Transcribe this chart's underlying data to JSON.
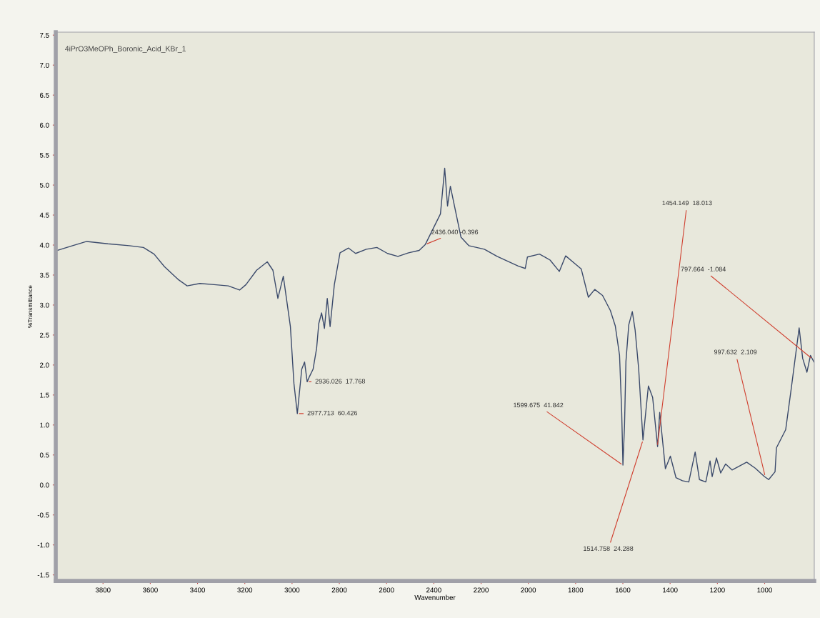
{
  "chart_data": {
    "type": "line",
    "xlabel": "Wavenumber",
    "ylabel": "%Transmittance",
    "xlim": [
      4000,
      790
    ],
    "ylim": [
      -1.6,
      7.55
    ],
    "xticks": [
      3800,
      3600,
      3400,
      3200,
      3000,
      2800,
      2600,
      2400,
      2200,
      2000,
      1800,
      1600,
      1400,
      1200,
      1000
    ],
    "yticks": [
      7.5,
      {
        "value": 7,
        "label": "7.0"
      },
      6.5,
      {
        "value": 6,
        "label": "6.0"
      },
      5.5,
      {
        "value": 5,
        "label": "5.0"
      },
      4.5,
      {
        "value": 4,
        "label": "4.0"
      },
      3.5,
      {
        "value": 3,
        "label": "3.0"
      },
      2.5,
      {
        "value": 2,
        "label": "2.0"
      },
      1.5,
      {
        "value": 1,
        "label": "1.0"
      },
      0.5,
      {
        "value": 0,
        "label": "0.0"
      },
      -0.5,
      {
        "value": -1,
        "label": "-1.0"
      },
      -1.5
    ],
    "grid": false,
    "marker": "none",
    "line_style": "solid",
    "series": [
      {
        "color": "#3b4a6b",
        "x": [
          3995,
          3929,
          3869,
          3779,
          3689,
          3629,
          3584,
          3540,
          3480,
          3444,
          3390,
          3330,
          3270,
          3222,
          3195,
          3150,
          3105,
          3081,
          3060,
          3037,
          3007,
          2992,
          2977.7,
          2959,
          2947,
          2936,
          2926,
          2911,
          2896,
          2887,
          2875,
          2863,
          2851,
          2839,
          2821,
          2797,
          2761,
          2731,
          2686,
          2641,
          2596,
          2552,
          2507,
          2462,
          2436,
          2372,
          2354,
          2342,
          2330,
          2312,
          2285,
          2252,
          2186,
          2132,
          2043,
          2013,
          2004,
          1953,
          1908,
          1869,
          1842,
          1803,
          1776,
          1746,
          1719,
          1686,
          1653,
          1632,
          1614,
          1605,
          1599.7,
          1593,
          1587,
          1575,
          1560,
          1548,
          1533,
          1515,
          1492,
          1474,
          1453,
          1444,
          1420,
          1399,
          1375,
          1348,
          1321,
          1294,
          1276,
          1249,
          1231,
          1222,
          1204,
          1186,
          1165,
          1138,
          1076,
          1040,
          1001,
          983,
          956,
          950,
          911,
          887,
          854,
          839,
          821,
          806,
          791
        ],
        "values": [
          3.91,
          3.99,
          4.06,
          4.02,
          3.99,
          3.96,
          3.85,
          3.64,
          3.42,
          3.32,
          3.36,
          3.34,
          3.32,
          3.25,
          3.34,
          3.58,
          3.72,
          3.58,
          3.11,
          3.48,
          2.64,
          1.69,
          1.19,
          1.93,
          2.05,
          1.72,
          1.81,
          1.93,
          2.28,
          2.69,
          2.87,
          2.61,
          3.11,
          2.64,
          3.34,
          3.87,
          3.95,
          3.86,
          3.93,
          3.96,
          3.86,
          3.81,
          3.87,
          3.91,
          4.01,
          4.52,
          5.28,
          4.65,
          4.98,
          4.64,
          4.13,
          3.99,
          3.93,
          3.81,
          3.65,
          3.61,
          3.8,
          3.85,
          3.75,
          3.56,
          3.82,
          3.69,
          3.6,
          3.13,
          3.26,
          3.16,
          2.91,
          2.65,
          2.16,
          1.22,
          0.33,
          0.99,
          2.06,
          2.67,
          2.89,
          2.58,
          1.93,
          0.75,
          1.65,
          1.46,
          0.64,
          1.21,
          0.27,
          0.48,
          0.12,
          0.07,
          0.05,
          0.55,
          0.09,
          0.05,
          0.4,
          0.14,
          0.45,
          0.2,
          0.35,
          0.25,
          0.38,
          0.28,
          0.14,
          0.09,
          0.22,
          0.62,
          0.92,
          1.62,
          2.62,
          2.11,
          1.88,
          2.16,
          2.05
        ]
      }
    ],
    "annotations": [
      "4iPrO3MeOPh_Boronic_Acid_KBr_1",
      {
        "text": "2436.040 -0.396",
        "x": 2436.04,
        "y": 4.01
      },
      {
        "text": "2936.026  17.768",
        "x": 2936.026,
        "y": 1.72
      },
      {
        "text": "2977.713  60.426",
        "x": 2977.713,
        "y": 1.19
      },
      {
        "text": "1599.675  41.842",
        "x": 1599.675,
        "y": 0.33
      },
      {
        "text": "1514.758  24.288",
        "x": 1514.758,
        "y": 0.75
      },
      {
        "text": "1454.149  18.013",
        "x": 1454.149,
        "y": 0.64
      },
      {
        "text": "997.632  2.109",
        "x": 997.632,
        "y": 0.14
      },
      {
        "text": "797.664  -1.084",
        "x": 797.664,
        "y": 2.1
      }
    ]
  }
}
